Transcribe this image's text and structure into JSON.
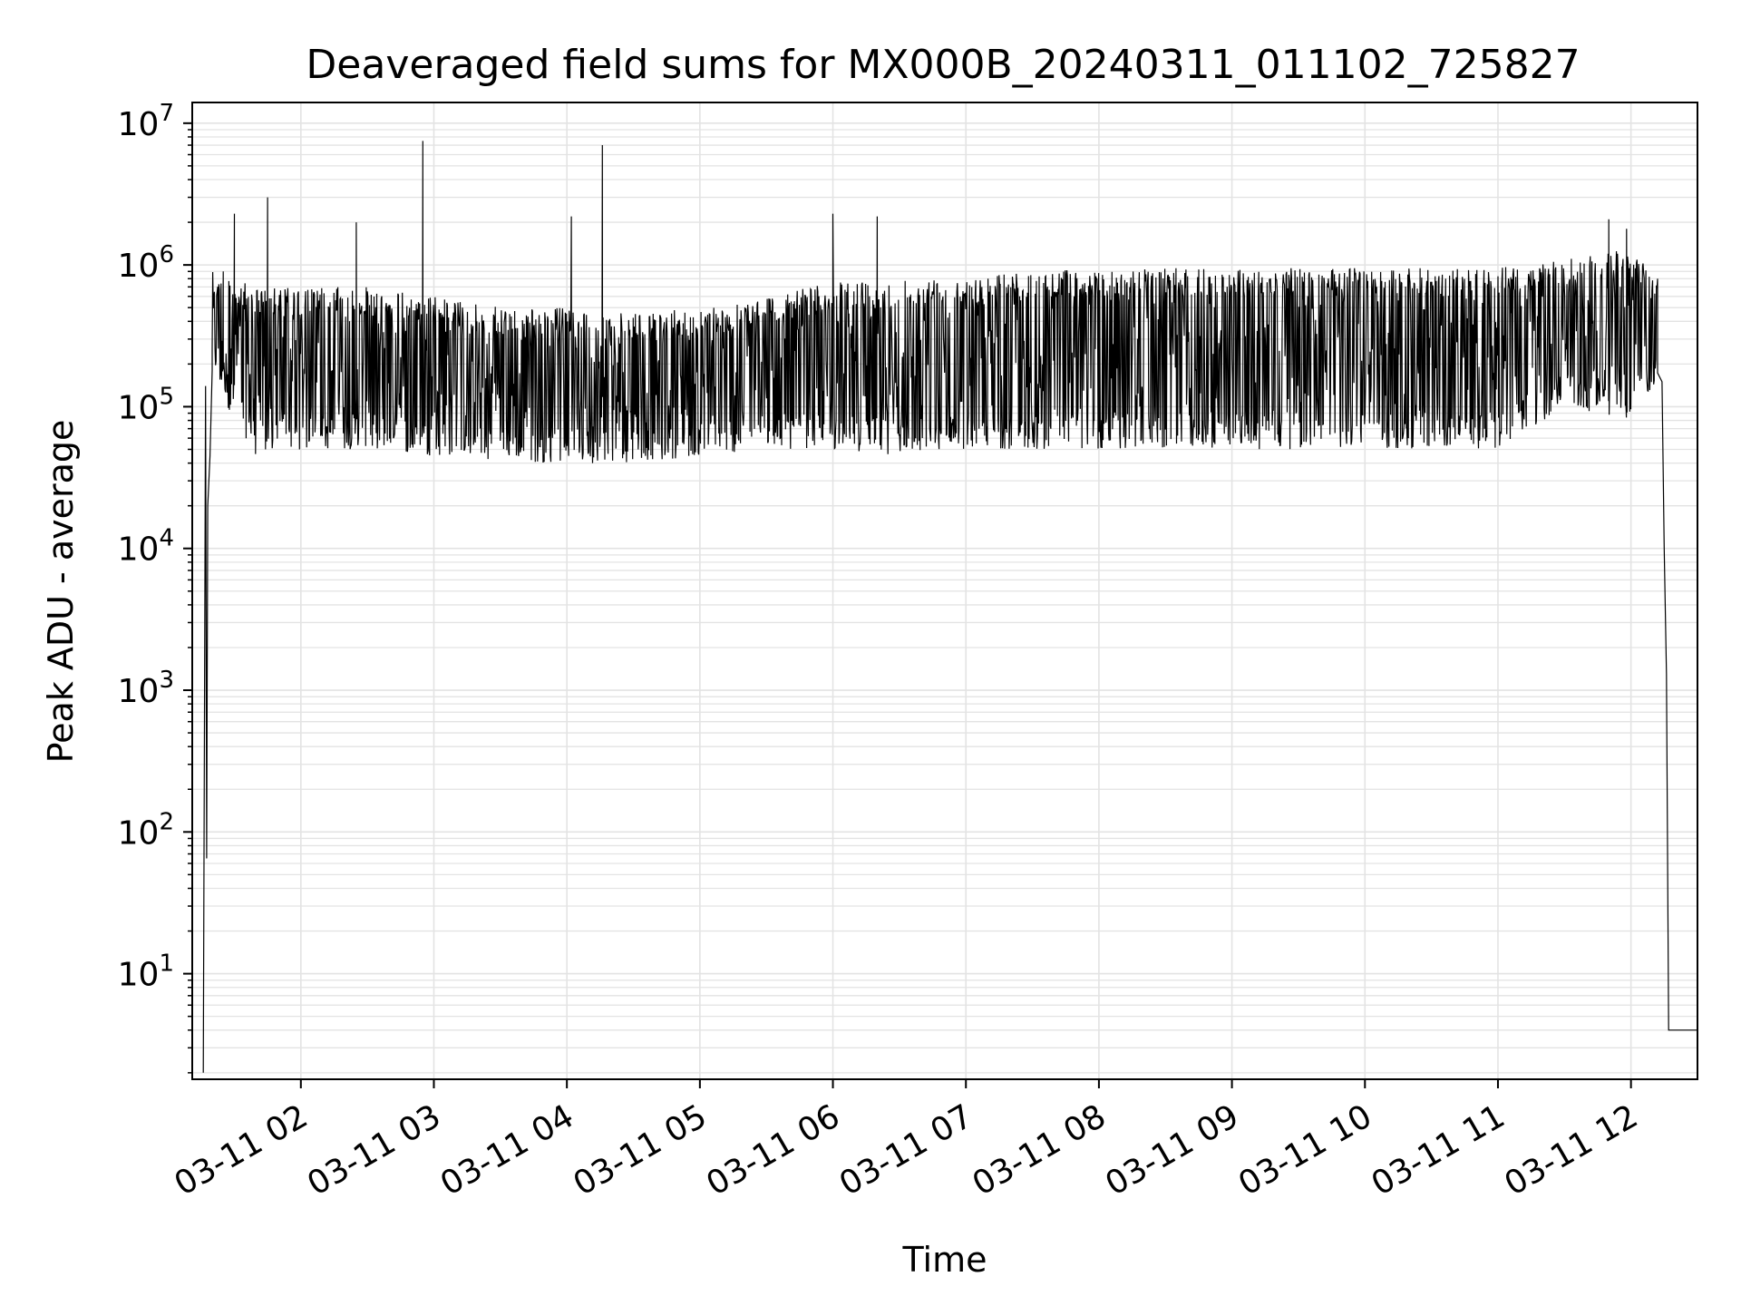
{
  "chart_data": {
    "type": "line",
    "title": "Deaveraged field sums for MX000B_20240311_011102_725827",
    "xlabel": "Time",
    "ylabel": "Peak ADU - average",
    "y_scale": "log",
    "ylim": [
      1.8,
      14000000
    ],
    "xlim": [
      "2024-03-11 01:11",
      "2024-03-11 12:30"
    ],
    "grid": true,
    "line_color": "#000000",
    "x_ticks": [
      "03-11 02",
      "03-11 03",
      "03-11 04",
      "03-11 05",
      "03-11 06",
      "03-11 07",
      "03-11 08",
      "03-11 09",
      "03-11 10",
      "03-11 11",
      "03-11 12"
    ],
    "x_tick_times": [
      "2024-03-11 02:00",
      "2024-03-11 03:00",
      "2024-03-11 04:00",
      "2024-03-11 05:00",
      "2024-03-11 06:00",
      "2024-03-11 07:00",
      "2024-03-11 08:00",
      "2024-03-11 09:00",
      "2024-03-11 10:00",
      "2024-03-11 11:00",
      "2024-03-11 12:00"
    ],
    "y_ticks": [
      {
        "value": 10,
        "base": "10",
        "exp": "1"
      },
      {
        "value": 100,
        "base": "10",
        "exp": "2"
      },
      {
        "value": 1000,
        "base": "10",
        "exp": "3"
      },
      {
        "value": 10000,
        "base": "10",
        "exp": "4"
      },
      {
        "value": 100000,
        "base": "10",
        "exp": "5"
      },
      {
        "value": 1000000,
        "base": "10",
        "exp": "6"
      },
      {
        "value": 10000000,
        "base": "10",
        "exp": "7"
      }
    ],
    "series": [
      {
        "envelope": {
          "x": [
            "2024-03-11 01:20",
            "2024-03-11 01:40",
            "2024-03-11 02:00",
            "2024-03-11 02:30",
            "2024-03-11 03:00",
            "2024-03-11 03:30",
            "2024-03-11 04:00",
            "2024-03-11 04:30",
            "2024-03-11 05:00",
            "2024-03-11 05:30",
            "2024-03-11 06:00",
            "2024-03-11 06:30",
            "2024-03-11 07:00",
            "2024-03-11 07:30",
            "2024-03-11 08:00",
            "2024-03-11 08:30",
            "2024-03-11 09:00",
            "2024-03-11 09:30",
            "2024-03-11 10:00",
            "2024-03-11 10:30",
            "2024-03-11 11:00",
            "2024-03-11 11:30",
            "2024-03-11 12:00",
            "2024-03-11 12:12"
          ],
          "upper": [
            900000,
            700000,
            700000,
            700000,
            600000,
            500000,
            500000,
            450000,
            500000,
            600000,
            750000,
            800000,
            850000,
            900000,
            950000,
            950000,
            950000,
            950000,
            950000,
            950000,
            950000,
            1100000,
            1300000,
            800000
          ],
          "lower": [
            150000,
            45000,
            50000,
            50000,
            45000,
            40000,
            40000,
            40000,
            45000,
            50000,
            50000,
            45000,
            50000,
            50000,
            50000,
            50000,
            50000,
            50000,
            50000,
            50000,
            50000,
            100000,
            80000,
            150000
          ]
        },
        "points": [
          {
            "x": "2024-03-11 01:16",
            "y": 2
          },
          {
            "x": "2024-03-11 01:17",
            "y": 140000
          },
          {
            "x": "2024-03-11 01:17:30",
            "y": 65
          },
          {
            "x": "2024-03-11 01:18",
            "y": 20000
          },
          {
            "x": "2024-03-11 01:19",
            "y": 45000
          },
          {
            "x": "2024-03-11 01:20",
            "y": 180000
          },
          {
            "x": "2024-03-11 01:25",
            "y": 900000
          },
          {
            "x": "2024-03-11 01:30",
            "y": 2300000
          },
          {
            "x": "2024-03-11 01:35",
            "y": 400000
          },
          {
            "x": "2024-03-11 01:45",
            "y": 3000000
          },
          {
            "x": "2024-03-11 02:25",
            "y": 2000000
          },
          {
            "x": "2024-03-11 02:55",
            "y": 7500000
          },
          {
            "x": "2024-03-11 04:02",
            "y": 2200000
          },
          {
            "x": "2024-03-11 04:16",
            "y": 7000000
          },
          {
            "x": "2024-03-11 06:00",
            "y": 2300000
          },
          {
            "x": "2024-03-11 06:20",
            "y": 2200000
          },
          {
            "x": "2024-03-11 11:50",
            "y": 2100000
          },
          {
            "x": "2024-03-11 11:58",
            "y": 1800000
          },
          {
            "x": "2024-03-11 12:12",
            "y": 800000
          },
          {
            "x": "2024-03-11 12:14",
            "y": 150000
          },
          {
            "x": "2024-03-11 12:15",
            "y": 10000
          },
          {
            "x": "2024-03-11 12:16",
            "y": 1300
          },
          {
            "x": "2024-03-11 12:17",
            "y": 4
          },
          {
            "x": "2024-03-11 12:30",
            "y": 4
          }
        ]
      }
    ]
  }
}
